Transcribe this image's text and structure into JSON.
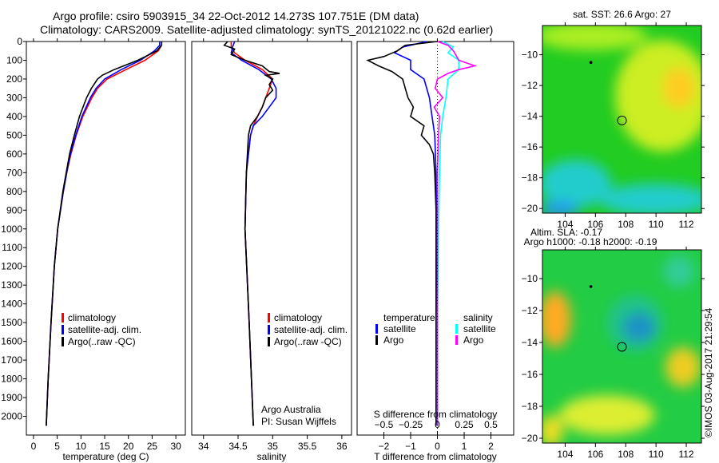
{
  "title_line1": "Argo profile: csiro 5903915_34 22-Oct-2012 14.273S 107.751E (DM data)",
  "title_line2": "Climatology: CARS2009. Satellite-adjusted climatology: synTS_20121022.nc (0.62d earlier)",
  "side_label": "©IMOS 03-Aug-2017 21:29:54",
  "colors": {
    "climatology": "#ff0000",
    "satellite": "#0000ff",
    "argo": "#000000",
    "sal_satellite": "#00ffff",
    "sal_argo": "#ff00ff"
  },
  "chart_data": [
    {
      "type": "line",
      "id": "temp",
      "xlabel": "temperature (deg C)",
      "ylabel": "",
      "xlim": [
        -1.5,
        32
      ],
      "ylim": [
        0,
        2100
      ],
      "xticks": [
        0,
        5,
        10,
        15,
        20,
        25,
        30
      ],
      "yticks": [
        0,
        100,
        200,
        300,
        400,
        500,
        600,
        700,
        800,
        900,
        1000,
        1100,
        1200,
        1300,
        1400,
        1500,
        1600,
        1700,
        1800,
        1900,
        2000
      ],
      "legend": [
        "climatology",
        "satellite-adj. clim.",
        "Argo(..raw -QC)"
      ],
      "series": [
        {
          "name": "climatology",
          "color": "#ff0000",
          "depth": [
            0,
            20,
            50,
            100,
            150,
            200,
            250,
            300,
            400,
            500,
            600,
            700,
            800,
            1000,
            1200,
            1500,
            1800,
            2050
          ],
          "values": [
            27,
            27,
            26.3,
            23.5,
            19.5,
            15.5,
            13.5,
            12.3,
            10.4,
            9,
            7.9,
            7,
            6.3,
            5.1,
            4.4,
            3.7,
            3.1,
            2.7
          ]
        },
        {
          "name": "satellite-adj. clim.",
          "color": "#0000ff",
          "depth": [
            0,
            20,
            50,
            100,
            150,
            200,
            250,
            300,
            400,
            500,
            600,
            700,
            800,
            1000,
            1200,
            1500,
            1800,
            2050
          ],
          "values": [
            26.6,
            26.6,
            25.5,
            22.5,
            18.5,
            15,
            13.2,
            12,
            10.2,
            8.9,
            7.8,
            7,
            6.3,
            5.1,
            4.4,
            3.7,
            3.1,
            2.7
          ]
        },
        {
          "name": "Argo(..raw -QC)",
          "color": "#000000",
          "depth": [
            0,
            20,
            50,
            100,
            150,
            180,
            200,
            250,
            300,
            400,
            500,
            600,
            700,
            800,
            1000,
            1200,
            1500,
            1800,
            2050
          ],
          "values": [
            27,
            27,
            26,
            22,
            17,
            14.5,
            13.5,
            12.2,
            11.2,
            9.7,
            8.6,
            7.6,
            6.9,
            6.2,
            5.1,
            4.4,
            3.7,
            3.1,
            2.7
          ]
        }
      ]
    },
    {
      "type": "line",
      "id": "sal",
      "xlabel": "salinity",
      "ylabel": "",
      "xlim": [
        33.83,
        36.14
      ],
      "ylim": [
        0,
        2100
      ],
      "xticks": [
        34,
        34.5,
        35,
        35.5,
        36
      ],
      "legend": [
        "climatology",
        "satellite-adj. clim.",
        "Argo(..raw -QC)"
      ],
      "annotation": [
        "Argo Australia",
        "PI: Susan Wijffels"
      ],
      "series": [
        {
          "name": "climatology",
          "color": "#ff0000",
          "depth": [
            0,
            30,
            60,
            100,
            150,
            200,
            250,
            300,
            350,
            400,
            450,
            500,
            700,
            1000,
            1500,
            2050
          ],
          "values": [
            34.4,
            34.4,
            34.45,
            34.6,
            34.85,
            35.0,
            34.95,
            34.9,
            34.85,
            34.78,
            34.72,
            34.68,
            34.62,
            34.6,
            34.66,
            34.72
          ]
        },
        {
          "name": "satellite-adj. clim.",
          "color": "#0000ff",
          "depth": [
            0,
            30,
            60,
            100,
            150,
            200,
            250,
            300,
            350,
            400,
            450,
            500,
            700,
            1000,
            1500,
            2050
          ],
          "values": [
            34.45,
            34.42,
            34.4,
            34.55,
            34.8,
            34.98,
            35.05,
            35.05,
            34.95,
            34.85,
            34.72,
            34.68,
            34.62,
            34.6,
            34.66,
            34.72
          ]
        },
        {
          "name": "Argo(..raw -QC)",
          "color": "#000000",
          "depth": [
            0,
            20,
            40,
            70,
            100,
            130,
            160,
            170,
            180,
            200,
            230,
            260,
            300,
            350,
            400,
            450,
            500,
            700,
            1000,
            1500,
            2050
          ],
          "values": [
            34.35,
            34.3,
            34.45,
            34.4,
            34.6,
            34.85,
            34.95,
            35.1,
            34.9,
            35.0,
            34.95,
            35.0,
            34.9,
            34.85,
            34.78,
            34.68,
            34.65,
            34.62,
            34.6,
            34.66,
            34.72
          ]
        }
      ]
    },
    {
      "type": "line",
      "id": "diff",
      "xlabel": "T difference from climatology",
      "x2label": "S difference from climatology",
      "xlim": [
        -3,
        2.85
      ],
      "ylim": [
        0,
        2100
      ],
      "xticks": [
        -2,
        -1,
        0,
        1,
        2
      ],
      "x2ticks": [
        -0.5,
        -0.25,
        0,
        0.25,
        0.5
      ],
      "x2scale": 4,
      "legend_titles": [
        "temperature",
        "salinity"
      ],
      "legend": [
        "satellite",
        "Argo",
        "satellite",
        "Argo"
      ],
      "series": [
        {
          "name": "T satellite",
          "color": "#0000ff",
          "depth": [
            0,
            30,
            60,
            100,
            150,
            200,
            300,
            400,
            500,
            700,
            1000,
            1500,
            2050
          ],
          "values": [
            -0.4,
            -1.3,
            -1.6,
            -1.0,
            -1.0,
            -0.5,
            -0.3,
            -0.2,
            -0.1,
            -0.05,
            -0.02,
            0,
            0
          ]
        },
        {
          "name": "T Argo",
          "color": "#000000",
          "depth": [
            0,
            20,
            50,
            80,
            100,
            130,
            160,
            200,
            250,
            300,
            350,
            400,
            450,
            500,
            550,
            600,
            700,
            900,
            1100,
            1500,
            2050
          ],
          "values": [
            0,
            -1.2,
            -1.5,
            -2.0,
            -2.6,
            -2.2,
            -1.7,
            -1.3,
            -1.2,
            -1.1,
            -0.9,
            -1.0,
            -0.5,
            -0.6,
            -0.3,
            -0.15,
            -0.1,
            -0.05,
            -0.05,
            -0.05,
            -0.05
          ]
        },
        {
          "name": "S satellite",
          "color": "#00ffff",
          "depth": [
            0,
            30,
            60,
            100,
            150,
            200,
            300,
            400,
            500,
            700,
            1000,
            1500,
            2050
          ],
          "values": [
            0.05,
            0.15,
            0.1,
            0.2,
            0.2,
            0.1,
            0.08,
            0.05,
            0.03,
            0.02,
            0.01,
            0,
            0
          ]
        },
        {
          "name": "S Argo",
          "color": "#ff00ff",
          "depth": [
            0,
            20,
            50,
            100,
            130,
            150,
            170,
            200,
            250,
            300,
            350,
            400,
            500,
            700,
            1000,
            1500,
            2050
          ],
          "values": [
            0.0,
            0.1,
            0.15,
            0.2,
            0.35,
            0.2,
            0.1,
            0.0,
            -0.02,
            0.05,
            -0.03,
            0.02,
            0.01,
            0,
            0,
            0,
            0
          ]
        }
      ]
    },
    {
      "type": "heatmap",
      "id": "sst",
      "title": "sat. SST: 26.6 Argo: 27",
      "xlim": [
        102.5,
        113
      ],
      "ylim": [
        -20.3,
        -8.1
      ],
      "xticks": [
        104,
        106,
        108,
        110,
        112
      ],
      "yticks": [
        -10,
        -12,
        -14,
        -16,
        -18,
        -20
      ],
      "marker": [
        107.751,
        -14.273
      ]
    },
    {
      "type": "heatmap",
      "id": "sla",
      "title": "Altim. SLA: -0.17",
      "subtitle": "Argo h1000: -0.18 h2000: -0.19",
      "xlim": [
        102.5,
        113
      ],
      "ylim": [
        -20.3,
        -8.2
      ],
      "xticks": [
        104,
        106,
        108,
        110,
        112
      ],
      "yticks": [
        -10,
        -12,
        -14,
        -16,
        -18,
        -20
      ],
      "marker": [
        107.751,
        -14.273
      ]
    }
  ]
}
